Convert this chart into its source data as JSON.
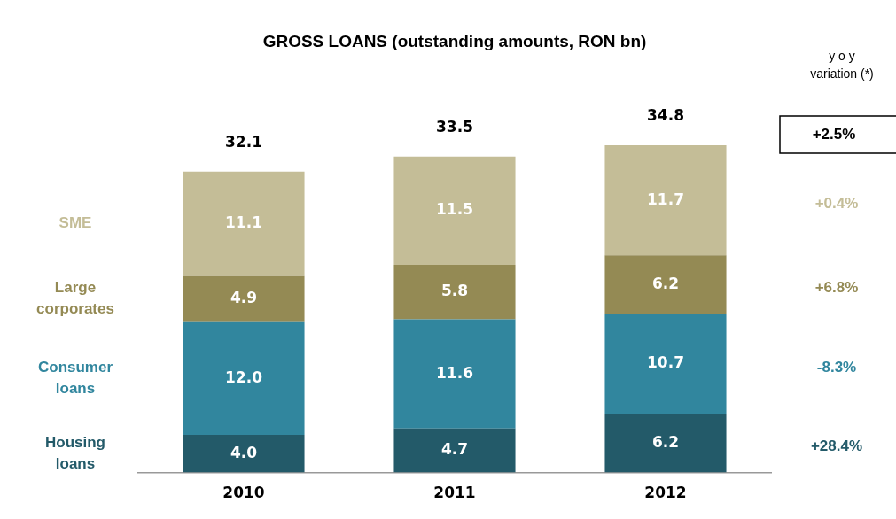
{
  "chart_data": {
    "type": "bar",
    "title": "GROSS LOANS (outstanding amounts, RON bn)",
    "categories": [
      "2010",
      "2011",
      "2012"
    ],
    "stacked": true,
    "grid": false,
    "legend": false,
    "tick_labels": "x",
    "series": [
      {
        "name": "Housing loans",
        "color": "#235a69",
        "values": [
          4.0,
          4.7,
          6.2
        ],
        "value_labels": [
          "4.0",
          "4.7",
          "6.2"
        ]
      },
      {
        "name": "Consumer loans",
        "color": "#31869e",
        "values": [
          12.0,
          11.6,
          10.7
        ],
        "value_labels": [
          "12.0",
          "11.6",
          "10.7"
        ]
      },
      {
        "name": "Large corporates",
        "color": "#948a54",
        "values": [
          4.9,
          5.8,
          6.2
        ],
        "value_labels": [
          "4.9",
          "5.8",
          "6.2"
        ]
      },
      {
        "name": "SME",
        "color": "#c4bd97",
        "values": [
          11.1,
          11.5,
          11.7
        ],
        "value_labels": [
          "11.1",
          "11.5",
          "11.7"
        ]
      }
    ],
    "totals": [
      "32.1",
      "33.5",
      "34.8"
    ],
    "annotations": [
      "y o y variation (*)",
      "+2.5%",
      "+28.4%",
      "-8.3%",
      "+6.8%",
      "+0.4%"
    ]
  }
}
